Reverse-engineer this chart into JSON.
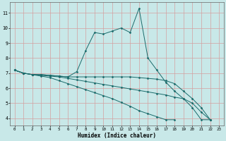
{
  "xlabel": "Humidex (Indice chaleur)",
  "bg_color": "#c8e8e8",
  "line_color": "#1a6b6b",
  "grid_color": "#d4a0a0",
  "xlim": [
    -0.5,
    23.5
  ],
  "ylim": [
    3.5,
    11.7
  ],
  "yticks": [
    4,
    5,
    6,
    7,
    8,
    9,
    10,
    11
  ],
  "xticks": [
    0,
    1,
    2,
    3,
    4,
    5,
    6,
    7,
    8,
    9,
    10,
    11,
    12,
    13,
    14,
    15,
    16,
    17,
    18,
    19,
    20,
    21,
    22,
    23
  ],
  "line1_x": [
    0,
    1,
    2,
    3,
    4,
    5,
    6,
    7,
    8,
    9,
    10,
    11,
    12,
    13,
    14,
    15,
    16,
    17,
    18,
    19,
    20,
    21,
    22
  ],
  "line1_y": [
    7.2,
    7.0,
    6.9,
    6.9,
    6.85,
    6.8,
    6.75,
    7.1,
    8.5,
    9.7,
    9.6,
    9.8,
    10.0,
    9.7,
    11.3,
    8.0,
    7.2,
    6.4,
    5.8,
    5.3,
    4.7,
    3.9,
    3.9
  ],
  "line2_x": [
    0,
    1,
    2,
    3,
    4,
    5,
    6,
    7,
    8,
    9,
    10,
    11,
    12,
    13,
    14,
    15,
    16,
    17,
    18,
    19,
    20,
    21,
    22
  ],
  "line2_y": [
    7.2,
    7.0,
    6.9,
    6.9,
    6.85,
    6.8,
    6.75,
    6.75,
    6.75,
    6.75,
    6.75,
    6.75,
    6.75,
    6.75,
    6.7,
    6.65,
    6.6,
    6.5,
    6.3,
    5.8,
    5.3,
    4.7,
    3.9
  ],
  "line3_x": [
    0,
    1,
    2,
    3,
    4,
    5,
    6,
    7,
    8,
    9,
    10,
    11,
    12,
    13,
    14,
    15,
    16,
    17,
    18,
    19,
    20,
    21,
    22
  ],
  "line3_y": [
    7.2,
    7.0,
    6.9,
    6.85,
    6.8,
    6.75,
    6.65,
    6.55,
    6.45,
    6.35,
    6.25,
    6.15,
    6.05,
    5.95,
    5.85,
    5.75,
    5.65,
    5.55,
    5.4,
    5.3,
    5.0,
    4.4,
    3.9
  ],
  "line4_x": [
    0,
    1,
    2,
    3,
    4,
    5,
    6,
    7,
    8,
    9,
    10,
    11,
    12,
    13,
    14,
    15,
    16,
    17,
    18,
    19,
    20,
    21,
    22
  ],
  "line4_y": [
    7.2,
    7.0,
    6.9,
    6.8,
    6.7,
    6.5,
    6.3,
    6.1,
    5.9,
    5.7,
    5.5,
    5.3,
    5.05,
    4.8,
    4.5,
    4.3,
    4.1,
    3.9,
    3.9,
    null,
    null,
    null,
    null
  ]
}
